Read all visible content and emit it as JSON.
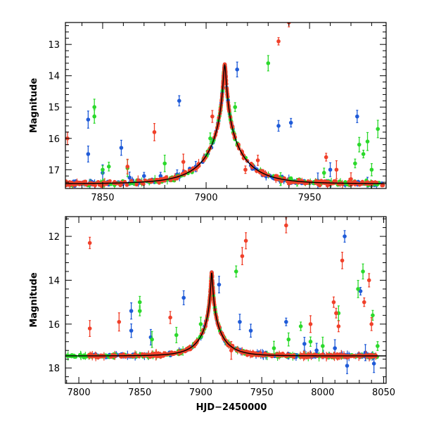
{
  "figure": {
    "xlabel": "HJD−2450000"
  },
  "chart_data": [
    {
      "type": "scatter",
      "panel": "top",
      "title": "",
      "xlabel": "",
      "ylabel": "Magnitude",
      "xlim": [
        7832,
        7987
      ],
      "ylim": [
        17.6,
        12.3
      ],
      "y_inverted": true,
      "x_ticks": [
        7850,
        7900,
        7950
      ],
      "y_ticks": [
        13,
        14,
        15,
        16,
        17
      ],
      "grid": false,
      "legend": "none",
      "model_curve": {
        "t0": 7909.0,
        "u0": 0.0305,
        "tE": 19.0,
        "base": 17.45,
        "color": "#000000"
      },
      "series": [
        {
          "color": "#1f5bd8",
          "t_range": [
            7832,
            7986
          ],
          "density": 1.2,
          "outliers": [
            [
              7843,
              15.4
            ],
            [
              7843,
              16.5
            ],
            [
              7850,
              17.1
            ],
            [
              7859,
              16.3
            ],
            [
              7863,
              17.25
            ],
            [
              7870,
              17.2
            ],
            [
              7878,
              17.2
            ],
            [
              7886,
              17.15
            ],
            [
              7887,
              14.8
            ],
            [
              7895,
              16.9
            ],
            [
              7915,
              13.8
            ],
            [
              7935,
              15.6
            ],
            [
              7941,
              15.5
            ],
            [
              7954,
              17.35
            ],
            [
              7960,
              17.0
            ],
            [
              7973,
              15.3
            ],
            [
              7978,
              17.4
            ]
          ]
        },
        {
          "color": "#2bd92b",
          "t_range": [
            7832,
            7986
          ],
          "density": 1.0,
          "outliers": [
            [
              7846,
              15.0
            ],
            [
              7846,
              15.3
            ],
            [
              7850,
              17.0
            ],
            [
              7853,
              16.9
            ],
            [
              7862,
              16.95
            ],
            [
              7880,
              16.8
            ],
            [
              7902,
              16.0
            ],
            [
              7914,
              15.0
            ],
            [
              7930,
              13.6
            ],
            [
              7936,
              17.3
            ],
            [
              7944,
              17.4
            ],
            [
              7957,
              17.1
            ],
            [
              7972,
              16.8
            ],
            [
              7974,
              16.2
            ],
            [
              7976,
              16.5
            ],
            [
              7978,
              16.1
            ],
            [
              7980,
              17.0
            ],
            [
              7983,
              15.7
            ]
          ]
        },
        {
          "color": "#f0402a",
          "t_range": [
            7832,
            7986
          ],
          "density": 1.6,
          "outliers": [
            [
              7833,
              16.0
            ],
            [
              7862,
              16.9
            ],
            [
              7875,
              15.8
            ],
            [
              7889,
              16.75
            ],
            [
              7903,
              15.3
            ],
            [
              7919,
              17.0
            ],
            [
              7925,
              16.7
            ],
            [
              7935,
              12.9
            ],
            [
              7940,
              12.3
            ],
            [
              7958,
              16.6
            ],
            [
              7963,
              17.0
            ],
            [
              7970,
              17.3
            ]
          ]
        }
      ]
    },
    {
      "type": "scatter",
      "panel": "bottom",
      "title": "",
      "xlabel": "HJD−2450000",
      "ylabel": "Magnitude",
      "xlim": [
        7789,
        8052
      ],
      "ylim": [
        18.7,
        11.1
      ],
      "y_inverted": true,
      "x_ticks": [
        7800,
        7850,
        7900,
        7950,
        8000,
        8050
      ],
      "y_ticks": [
        12,
        14,
        16,
        18
      ],
      "grid": false,
      "legend": "none",
      "model_curve": {
        "t0": 7909.0,
        "u0": 0.0305,
        "tE": 19.0,
        "base": 17.45,
        "color": "#000000"
      },
      "series": [
        {
          "color": "#1f5bd8",
          "t_range": [
            7808,
            8045
          ],
          "density": 1.0,
          "outliers": [
            [
              7843,
              15.4
            ],
            [
              7843,
              16.3
            ],
            [
              7859,
              16.6
            ],
            [
              7886,
              14.8
            ],
            [
              7915,
              14.2
            ],
            [
              7932,
              15.9
            ],
            [
              7941,
              16.3
            ],
            [
              7970,
              15.9
            ],
            [
              7985,
              16.9
            ],
            [
              7995,
              17.2
            ],
            [
              8010,
              17.1
            ],
            [
              8018,
              12.0
            ],
            [
              8020,
              17.9
            ],
            [
              8031,
              14.5
            ],
            [
              8035,
              17.3
            ],
            [
              8042,
              17.8
            ]
          ]
        },
        {
          "color": "#2bd92b",
          "t_range": [
            7790,
            8045
          ],
          "density": 1.0,
          "outliers": [
            [
              7850,
              15.0
            ],
            [
              7850,
              15.4
            ],
            [
              7860,
              16.7
            ],
            [
              7880,
              16.5
            ],
            [
              7900,
              16.0
            ],
            [
              7929,
              13.6
            ],
            [
              7960,
              17.1
            ],
            [
              7972,
              16.7
            ],
            [
              7982,
              16.1
            ],
            [
              7990,
              16.8
            ],
            [
              8000,
              17.0
            ],
            [
              8013,
              15.5
            ],
            [
              8029,
              14.4
            ],
            [
              8033,
              13.6
            ],
            [
              8041,
              15.6
            ],
            [
              8045,
              17.0
            ]
          ]
        },
        {
          "color": "#f0402a",
          "t_range": [
            7808,
            8045
          ],
          "density": 1.4,
          "outliers": [
            [
              7809,
              12.3
            ],
            [
              7809,
              16.2
            ],
            [
              7833,
              15.9
            ],
            [
              7875,
              15.7
            ],
            [
              7925,
              17.2
            ],
            [
              7934,
              12.9
            ],
            [
              7937,
              12.2
            ],
            [
              7970,
              11.5
            ],
            [
              7990,
              16.0
            ],
            [
              8009,
              15.0
            ],
            [
              8011,
              15.5
            ],
            [
              8013,
              16.1
            ],
            [
              8016,
              13.1
            ],
            [
              8034,
              15.0
            ],
            [
              8038,
              14.0
            ],
            [
              8040,
              16.0
            ]
          ]
        }
      ]
    }
  ]
}
